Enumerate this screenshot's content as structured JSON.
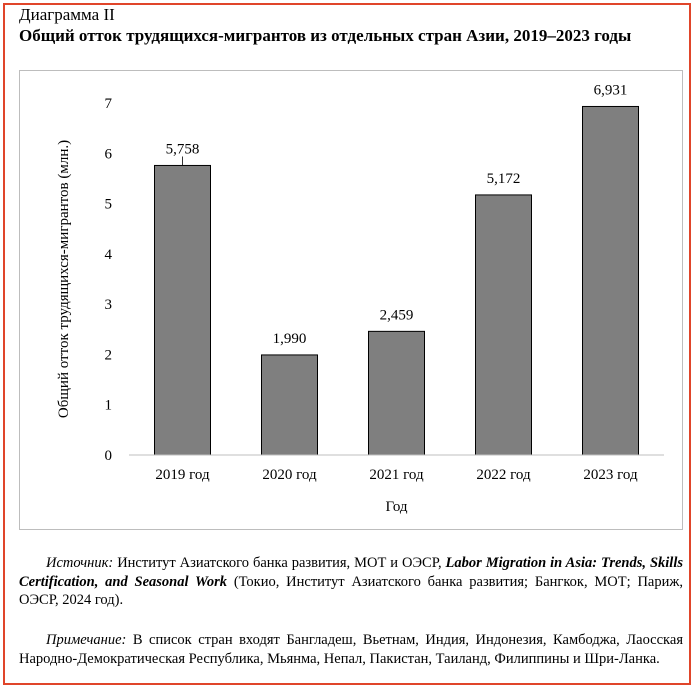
{
  "header": {
    "kicker": "Диаграмма II",
    "title": "Общий отток трудящихся-мигрантов из отдельных стран Азии, 2019–2023 годы"
  },
  "colors": {
    "bar": "#7f7f7f",
    "bar_stroke": "#000000",
    "frame": "#e0452a"
  },
  "chart_data": {
    "type": "bar",
    "categories": [
      "2019 год",
      "2020 год",
      "2021 год",
      "2022 год",
      "2023 год"
    ],
    "values": [
      5.758,
      1.99,
      2.459,
      5.172,
      6.931
    ],
    "value_labels": [
      "5,758",
      "1,990",
      "2,459",
      "5,172",
      "6,931"
    ],
    "xlabel": "Год",
    "ylabel": "Общий отток трудящихся-мигрантов (млн.)",
    "ylim": [
      0,
      7
    ],
    "yticks": [
      "0",
      "1",
      "2",
      "3",
      "4",
      "5",
      "6",
      "7"
    ],
    "grid": false,
    "legend": "none"
  },
  "footnotes": {
    "source_label": "Источник:",
    "source_text_1": " Институт Азиатского банка развития, МОТ и ОЭСР, ",
    "source_title": "Labor Migration in Asia: Trends, Skills Certification, and Seasonal Work",
    "source_text_2": " (Токио, Институт Азиатского банка развития; Бангкок, МОТ; Париж, ОЭСР, 2024 год).",
    "note_label": "Примечание:",
    "note_text": " В список стран входят Бангладеш, Вьетнам, Индия, Индонезия, Камбоджа, Лаосская Народно-Демократическая Республика, Мьянма, Непал, Пакистан, Таиланд, Филиппины и Шри-Ланка."
  }
}
